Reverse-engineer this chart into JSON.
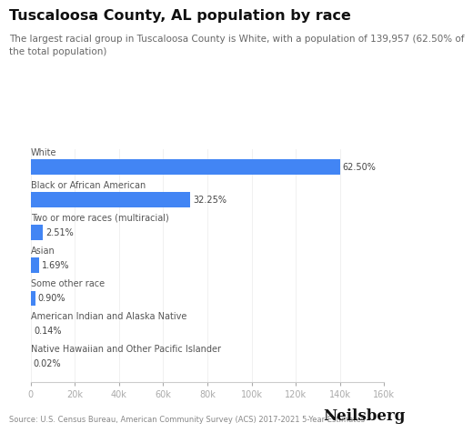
{
  "title": "Tuscaloosa County, AL population by race",
  "subtitle": "The largest racial group in Tuscaloosa County is White, with a population of 139,957 (62.50% of\nthe total population)",
  "categories": [
    "White",
    "Black or African American",
    "Two or more races (multiracial)",
    "Asian",
    "Some other race",
    "American Indian and Alaska Native",
    "Native Hawaiian and Other Pacific Islander"
  ],
  "values": [
    139957,
    72216,
    5619,
    3783,
    2014,
    313,
    45
  ],
  "percentages": [
    "62.50%",
    "32.25%",
    "2.51%",
    "1.69%",
    "0.90%",
    "0.14%",
    "0.02%"
  ],
  "bar_color": "#4285F4",
  "background_color": "#ffffff",
  "xlim": [
    0,
    160000
  ],
  "xtick_values": [
    0,
    20000,
    40000,
    60000,
    80000,
    100000,
    120000,
    140000,
    160000
  ],
  "xtick_labels": [
    "0",
    "20k",
    "40k",
    "60k",
    "80k",
    "100k",
    "120k",
    "140k",
    "160k"
  ],
  "source_text": "Source: U.S. Census Bureau, American Community Survey (ACS) 2017-2021 5-Year Estimates",
  "brand_text": "Neilsberg",
  "title_fontsize": 11.5,
  "subtitle_fontsize": 7.5,
  "category_fontsize": 7,
  "pct_fontsize": 7,
  "tick_fontsize": 7,
  "source_fontsize": 6,
  "brand_fontsize": 12
}
